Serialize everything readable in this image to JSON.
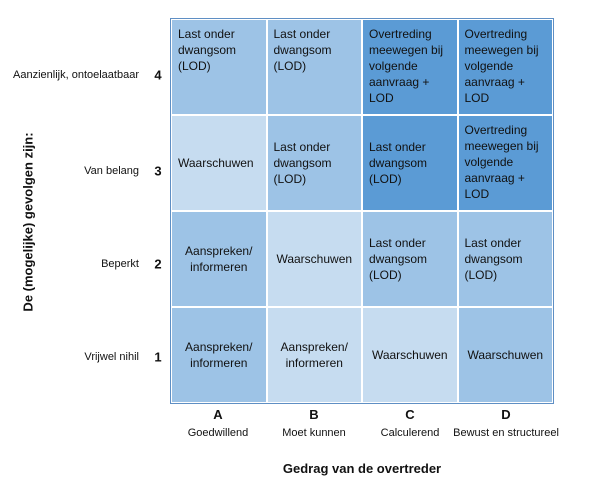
{
  "y_axis_title": "De (mogelijke) gevolgen zijn:",
  "x_axis_title": "Gedrag van de overtreder",
  "rows": [
    {
      "label": "Aanzienlijk, ontoelaatbaar",
      "num": "4"
    },
    {
      "label": "Van belang",
      "num": "3"
    },
    {
      "label": "Beperkt",
      "num": "2"
    },
    {
      "label": "Vrijwel nihil",
      "num": "1"
    }
  ],
  "columns": [
    {
      "letter": "A",
      "label": "Goedwillend"
    },
    {
      "letter": "B",
      "label": "Moet kunnen"
    },
    {
      "letter": "C",
      "label": "Calculerend"
    },
    {
      "letter": "D",
      "label": "Bewust en structureel"
    }
  ],
  "cells": [
    [
      "Last onder\ndwangsom\n(LOD)",
      "Last onder\ndwangsom\n(LOD)",
      "Overtreding\nmeewegen bij\nvolgende\naanvraag +\nLOD",
      "Overtreding\nmeewegen bij\nvolgende\naanvraag +\nLOD"
    ],
    [
      "Waarschuwen",
      "Last onder\ndwangsom\n(LOD)",
      "Last onder\ndwangsom\n(LOD)",
      "Overtreding\nmeewegen bij\nvolgende\naanvraag +\nLOD"
    ],
    [
      "Aanspreken/\ninformeren",
      "Waarschuwen",
      "Last onder\ndwangsom\n(LOD)",
      "Last onder\ndwangsom\n(LOD)"
    ],
    [
      "Aanspreken/\ninformeren",
      "Aanspreken/\ninformeren",
      "Waarschuwen",
      "Waarschuwen"
    ]
  ],
  "colors": {
    "light": "#c6dcf0",
    "mid": "#9dc3e6",
    "dark": "#5b9bd5"
  }
}
